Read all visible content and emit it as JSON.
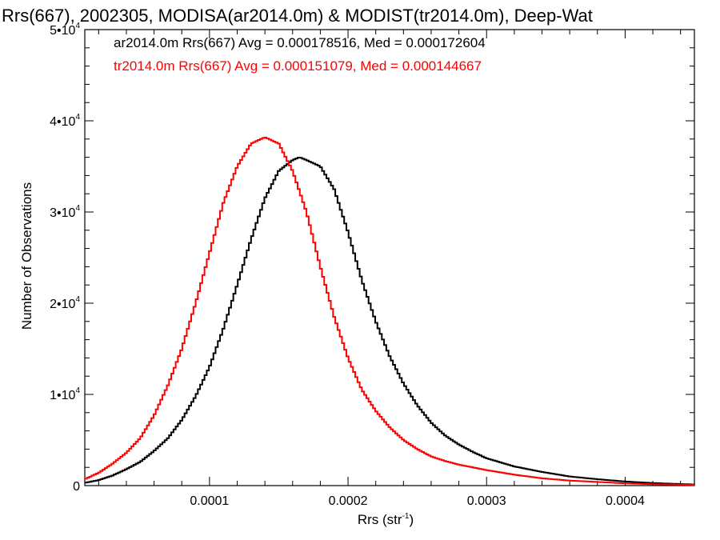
{
  "chart_data": {
    "type": "line",
    "title": "Rrs(667), 2002305, MODISA(ar2014.0m) & MODIST(tr2014.0m), Deep-Wat",
    "xlabel": "Rrs (str",
    "xlabel_sup": "-1",
    "xlabel_close": ")",
    "ylabel": "Number of Observations",
    "xlim": [
      1e-05,
      0.00045
    ],
    "ylim": [
      0,
      50000
    ],
    "x_ticks": [
      {
        "value": 0.0001,
        "label": "0.0001"
      },
      {
        "value": 0.0002,
        "label": "0.0002"
      },
      {
        "value": 0.0003,
        "label": "0.0003"
      },
      {
        "value": 0.0004,
        "label": "0.0004"
      }
    ],
    "y_ticks": [
      {
        "value": 0,
        "base": "0",
        "exp": ""
      },
      {
        "value": 10000,
        "base": "1•10",
        "exp": "4"
      },
      {
        "value": 20000,
        "base": "2•10",
        "exp": "4"
      },
      {
        "value": 30000,
        "base": "3•10",
        "exp": "4"
      },
      {
        "value": 40000,
        "base": "4•10",
        "exp": "4"
      },
      {
        "value": 50000,
        "base": "5•10",
        "exp": "4"
      }
    ],
    "legend": [
      {
        "text": "ar2014.0m Rrs(667) Avg = 0.000178516, Med = 0.000172604",
        "color": "#000000"
      },
      {
        "text": "tr2014.0m Rrs(667) Avg = 0.000151079, Med = 0.000144667",
        "color": "#ff0000"
      }
    ],
    "series": [
      {
        "color": "#000000",
        "x": [
          1e-05,
          2e-05,
          3e-05,
          4e-05,
          5e-05,
          6e-05,
          7e-05,
          8e-05,
          9e-05,
          0.0001,
          0.00011,
          0.00012,
          0.00013,
          0.00014,
          0.00015,
          0.00016,
          0.000165,
          0.00017,
          0.00018,
          0.00019,
          0.0002,
          0.00021,
          0.00022,
          0.00023,
          0.00024,
          0.00025,
          0.00026,
          0.00027,
          0.00028,
          0.00029,
          0.0003,
          0.00032,
          0.00034,
          0.00036,
          0.00038,
          0.0004,
          0.00042,
          0.00045
        ],
        "y": [
          300,
          600,
          1100,
          1800,
          2600,
          3800,
          5200,
          7200,
          9800,
          13000,
          17200,
          22000,
          27000,
          31500,
          34500,
          35700,
          36000,
          35700,
          35000,
          32500,
          27800,
          22500,
          18000,
          14200,
          11200,
          8800,
          6900,
          5500,
          4500,
          3700,
          3000,
          2100,
          1500,
          1000,
          700,
          450,
          280,
          120
        ]
      },
      {
        "color": "#ff0000",
        "x": [
          1e-05,
          2e-05,
          3e-05,
          4e-05,
          5e-05,
          6e-05,
          7e-05,
          8e-05,
          9e-05,
          0.0001,
          0.00011,
          0.00012,
          0.00013,
          0.00014,
          0.00015,
          0.00016,
          0.00017,
          0.00018,
          0.00019,
          0.0002,
          0.00021,
          0.00022,
          0.00023,
          0.00024,
          0.00025,
          0.00026,
          0.00027,
          0.00028,
          0.0003,
          0.00032,
          0.00034,
          0.00036,
          0.00038,
          0.0004,
          0.00042,
          0.00045
        ],
        "y": [
          700,
          1400,
          2400,
          3600,
          5200,
          7700,
          11000,
          15000,
          20000,
          25500,
          31000,
          35000,
          37500,
          38200,
          37500,
          34500,
          30000,
          24000,
          18500,
          14000,
          10500,
          8200,
          6400,
          5000,
          4000,
          3200,
          2700,
          2300,
          1700,
          1200,
          800,
          550,
          400,
          250,
          150,
          80
        ]
      }
    ],
    "grid": false
  }
}
